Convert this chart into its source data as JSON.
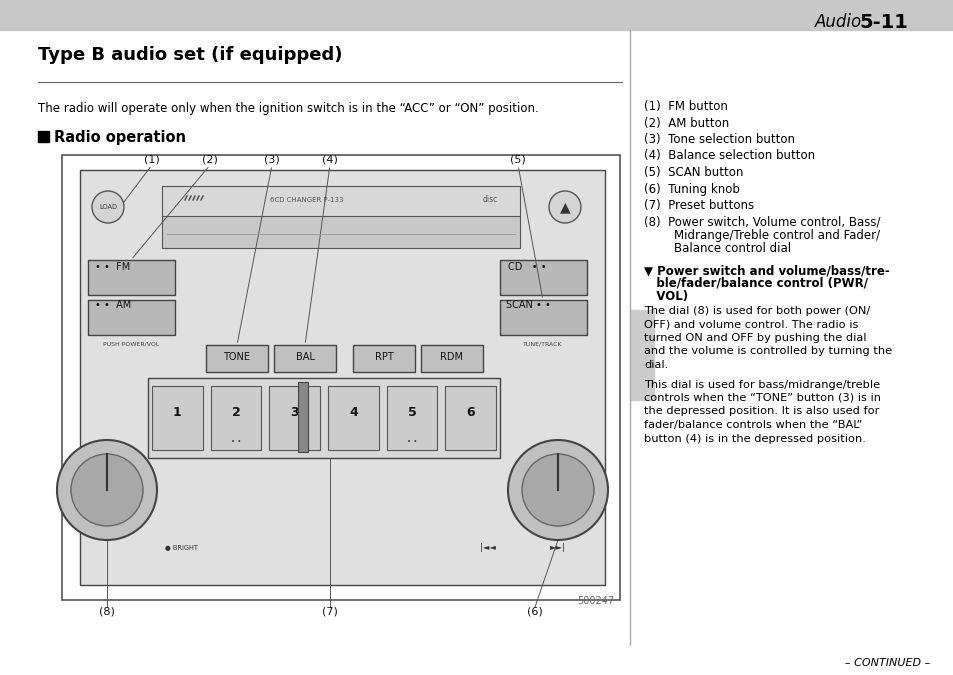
{
  "page_header_text": "Audio",
  "page_header_number": "5-11",
  "top_bar_color": "#c8c8c8",
  "title": "Type B audio set (if equipped)",
  "intro_text": "The radio will operate only when the ignition switch is in the “ACC” or “ON” position.",
  "section_header": "Radio operation",
  "right_col_items": [
    "(1)  FM button",
    "(2)  AM button",
    "(3)  Tone selection button",
    "(4)  Balance selection button",
    "(5)  SCAN button",
    "(6)  Tuning knob",
    "(7)  Preset buttons",
    "(8)  Power switch, Volume control, Bass/\n        Midrange/Treble control and Fader/\n        Balance control dial"
  ],
  "subsection_title_line1": "▼ Power switch and volume/bass/tre-",
  "subsection_title_line2": "   ble/fader/balance control (PWR/",
  "subsection_title_line3": "   VOL)",
  "subsection_body1_lines": [
    "The dial (8) is used for both power (ON/",
    "OFF) and volume control. The radio is",
    "turned ON and OFF by pushing the dial",
    "and the volume is controlled by turning the",
    "dial."
  ],
  "subsection_body2_lines": [
    "This dial is used for bass/midrange/treble",
    "controls when the “TONE” button (3) is in",
    "the depressed position. It is also used for",
    "fader/balance controls when the “BAL”",
    "button (4) is in the depressed position."
  ],
  "continued_text": "– CONTINUED –",
  "image_number": "500247",
  "bg_color": "#ffffff",
  "text_color": "#000000"
}
